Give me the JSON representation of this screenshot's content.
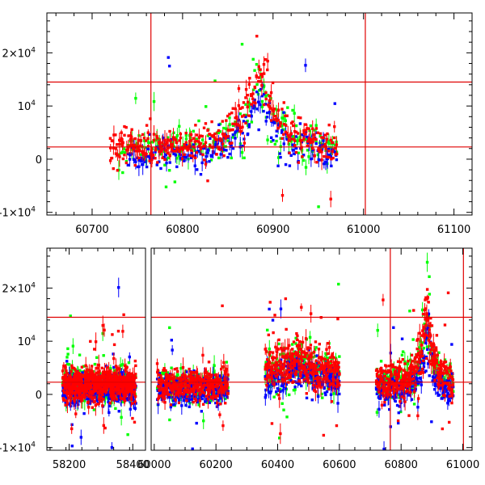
{
  "chart_data": [
    {
      "type": "scatter",
      "title": "",
      "xlabel": "",
      "ylabel": "",
      "xlim": [
        60650,
        61120
      ],
      "ylim": [
        -10500,
        27500
      ],
      "x_ticks": [
        60700,
        60800,
        60900,
        61000,
        61100
      ],
      "y_ticks": [
        {
          "value": -10000,
          "label": "-1×10",
          "exp": "4"
        },
        {
          "value": 0,
          "label": "0",
          "exp": ""
        },
        {
          "value": 10000,
          "label": "10",
          "exp": "4"
        },
        {
          "value": 20000,
          "label": "2×10",
          "exp": "4"
        }
      ],
      "reference_lines": {
        "horizontal": [
          2300,
          14500
        ],
        "vertical": [
          60765,
          61002
        ]
      },
      "series": [
        {
          "color": "#0000ff",
          "x_range": [
            60740,
            60970
          ],
          "baseline": 800,
          "flare_peak": 11500,
          "flare_center": 60885
        },
        {
          "color": "#00ff00",
          "x_range": [
            60730,
            60970
          ],
          "baseline": 2300,
          "flare_peak": 14000,
          "flare_center": 60885
        },
        {
          "color": "#ff0000",
          "x_range": [
            60720,
            60970
          ],
          "baseline": 2600,
          "flare_peak": 16000,
          "flare_center": 60885
        }
      ],
      "grid": false,
      "legend": "none"
    },
    {
      "type": "scatter",
      "title": "",
      "xlabel": "",
      "ylabel": "",
      "ylim": [
        -10500,
        27500
      ],
      "x_ticks": [
        {
          "value": 58200,
          "segment": 0
        },
        {
          "value": 58400,
          "segment": 0
        },
        {
          "value": 60000,
          "segment": 1
        },
        {
          "value": 60200,
          "segment": 1
        },
        {
          "value": 60400,
          "segment": 1
        },
        {
          "value": 60600,
          "segment": 1
        },
        {
          "value": 60800,
          "segment": 1
        },
        {
          "value": 61000,
          "segment": 1
        }
      ],
      "y_ticks": [
        {
          "value": -10000,
          "label": "-1×10",
          "exp": "4"
        },
        {
          "value": 0,
          "label": "0",
          "exp": ""
        },
        {
          "value": 10000,
          "label": "10",
          "exp": "4"
        },
        {
          "value": 20000,
          "label": "2×10",
          "exp": "4"
        }
      ],
      "segments": [
        {
          "xlim": [
            58130,
            58440
          ]
        },
        {
          "xlim": [
            59990,
            61030
          ]
        }
      ],
      "reference_lines": {
        "horizontal": [
          2300,
          14500
        ],
        "vertical": [
          60765,
          61002
        ]
      },
      "observing_seasons": [
        [
          58180,
          58410
        ],
        [
          60010,
          60240
        ],
        [
          60360,
          60600
        ],
        [
          60720,
          60970
        ]
      ],
      "series": [
        {
          "color": "#0000ff",
          "baseline": 800,
          "flare_peak": 11500,
          "flare_center": 60885
        },
        {
          "color": "#00ff00",
          "baseline": 2300,
          "flare_peak": 14000,
          "flare_center": 60885
        },
        {
          "color": "#ff0000",
          "baseline": 2600,
          "flare_peak": 16000,
          "flare_center": 60885
        }
      ],
      "grid": false,
      "legend": "none"
    }
  ]
}
